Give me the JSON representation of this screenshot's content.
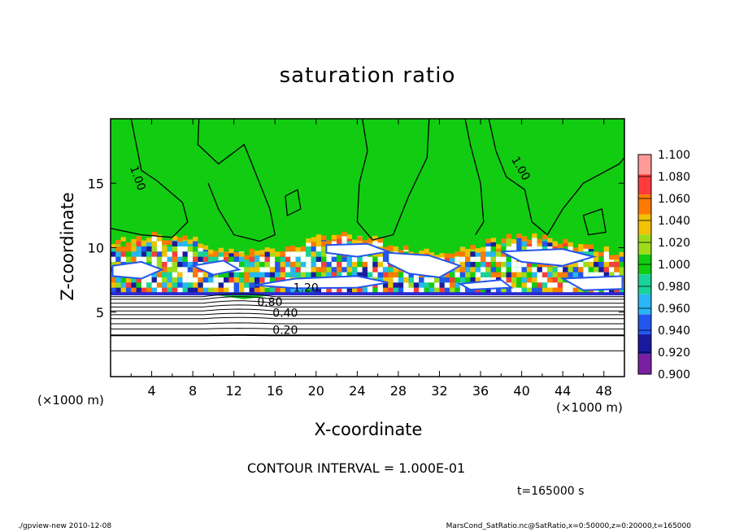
{
  "chart_data": {
    "type": "heatmap",
    "title": "saturation ratio",
    "xlabel": "X-coordinate",
    "ylabel": "Z-coordinate",
    "x_unit": "(×1000 m)",
    "y_unit": "(×1000 m)",
    "xlim": [
      0,
      50
    ],
    "ylim": [
      0,
      20
    ],
    "x_ticks": [
      4,
      8,
      12,
      16,
      20,
      24,
      28,
      32,
      36,
      40,
      44,
      48
    ],
    "y_ticks": [
      5,
      10,
      15
    ],
    "colorbar": {
      "levels": [
        0.9,
        0.92,
        0.94,
        0.96,
        0.98,
        1.0,
        1.02,
        1.04,
        1.06,
        1.08,
        1.1
      ],
      "labels": [
        "0.900",
        "0.920",
        "0.940",
        "0.960",
        "0.980",
        "1.000",
        "1.020",
        "1.040",
        "1.060",
        "1.080",
        "1.100"
      ],
      "colors": [
        "#7b1fa2",
        "#1a1aa0",
        "#2255ee",
        "#29b6f6",
        "#19d39b",
        "#11cc11",
        "#9edc1a",
        "#f2c100",
        "#ff7a00",
        "#ff3b3b",
        "#ff9a9a"
      ]
    },
    "background_value": 1.0,
    "contour_labels": [
      {
        "text": "1.00",
        "x": 2.3,
        "z": 15.3,
        "angle": 70
      },
      {
        "text": "1.00",
        "x": 39.6,
        "z": 16.0,
        "angle": 60
      },
      {
        "text": "1.20",
        "x": 19.0,
        "z": 6.6,
        "angle": 0
      },
      {
        "text": "0.80",
        "x": 15.5,
        "z": 5.5,
        "angle": 0
      },
      {
        "text": "0.40",
        "x": 17.0,
        "z": 4.65,
        "angle": 0
      },
      {
        "text": "0.20",
        "x": 17.0,
        "z": 3.3,
        "angle": 0
      }
    ],
    "lower_contour_levels_z": [
      2.0,
      3.2,
      3.7,
      4.1,
      4.5,
      4.8,
      5.1,
      5.4,
      5.7,
      6.0,
      6.2
    ]
  },
  "contour_interval": "CONTOUR INTERVAL = 1.000E-01",
  "time_label": "t=165000 s",
  "footer_left": "./gpview-new   2010-12-08",
  "footer_right": "MarsCond_SatRatio.nc@SatRatio,x=0:50000,z=0:20000,t=165000"
}
